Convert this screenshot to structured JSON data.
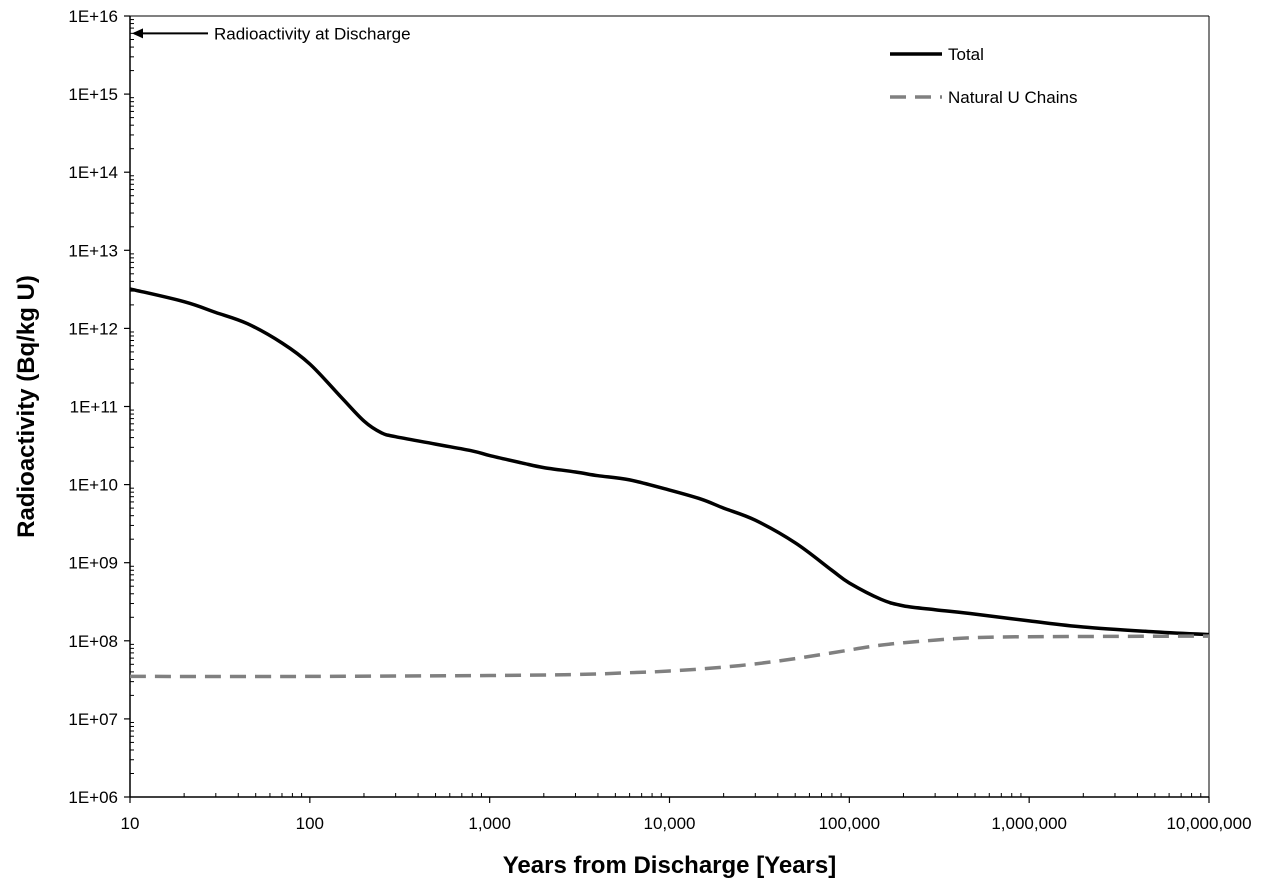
{
  "chart_data": {
    "type": "line",
    "title": "",
    "xlabel": "Years from Discharge [Years]",
    "ylabel": "Radioactivity (Bq/kg U)",
    "x_scale": "log",
    "y_scale": "log",
    "xlim": [
      10,
      10000000
    ],
    "ylim": [
      1000000.0,
      1e+16
    ],
    "grid": false,
    "legend_position": "top-right",
    "x_ticks": [
      {
        "value": 10,
        "label": "10"
      },
      {
        "value": 100,
        "label": "100"
      },
      {
        "value": 1000,
        "label": "1,000"
      },
      {
        "value": 10000,
        "label": "10,000"
      },
      {
        "value": 100000,
        "label": "100,000"
      },
      {
        "value": 1000000,
        "label": "1,000,000"
      },
      {
        "value": 10000000,
        "label": "10,000,000"
      }
    ],
    "y_ticks": [
      {
        "value": 1000000.0,
        "label": "1E+06"
      },
      {
        "value": 10000000.0,
        "label": "1E+07"
      },
      {
        "value": 100000000.0,
        "label": "1E+08"
      },
      {
        "value": 1000000000.0,
        "label": "1E+09"
      },
      {
        "value": 10000000000.0,
        "label": "1E+10"
      },
      {
        "value": 100000000000.0,
        "label": "1E+11"
      },
      {
        "value": 1000000000000.0,
        "label": "1E+12"
      },
      {
        "value": 10000000000000.0,
        "label": "1E+13"
      },
      {
        "value": 100000000000000.0,
        "label": "1E+14"
      },
      {
        "value": 1000000000000000.0,
        "label": "1E+15"
      },
      {
        "value": 1e+16,
        "label": "1E+16"
      }
    ],
    "series": [
      {
        "name": "Total",
        "color": "#000000",
        "style": "solid",
        "x": [
          10,
          20,
          30,
          45,
          70,
          100,
          150,
          200,
          250,
          300,
          500,
          800,
          1000,
          1500,
          2000,
          3000,
          4000,
          6000,
          10000,
          15000,
          20000,
          30000,
          50000,
          80000,
          100000,
          150000,
          200000,
          300000,
          500000,
          1000000,
          2000000,
          5000000,
          10000000
        ],
        "values": [
          3200000000000.0,
          2200000000000.0,
          1600000000000.0,
          1150000000000.0,
          650000000000.0,
          350000000000.0,
          130000000000.0,
          65000000000.0,
          46000000000.0,
          41000000000.0,
          33000000000.0,
          27000000000.0,
          23500000000.0,
          19000000000.0,
          16500000000.0,
          14500000000.0,
          13000000000.0,
          11500000000.0,
          8500000000.0,
          6500000000.0,
          5000000000.0,
          3500000000.0,
          1800000000.0,
          800000000.0,
          550000000.0,
          340000000.0,
          280000000.0,
          250000000.0,
          220000000.0,
          180000000.0,
          150000000.0,
          130000000.0,
          120000000.0
        ]
      },
      {
        "name": "Natural U Chains",
        "color": "#808080",
        "style": "dashed",
        "x": [
          10,
          100,
          1000,
          3000,
          6000,
          10000,
          20000,
          40000,
          80000,
          150000,
          300000,
          500000,
          1000000,
          3000000,
          10000000
        ],
        "values": [
          35000000.0,
          35000000.0,
          36000000.0,
          37000000.0,
          39000000.0,
          41000000.0,
          46000000.0,
          55000000.0,
          70000000.0,
          88000000.0,
          102000000.0,
          110000000.0,
          113000000.0,
          114000000.0,
          115000000.0
        ]
      }
    ],
    "annotations": [
      {
        "text": "Radioactivity at Discharge",
        "x": 10,
        "y": 6000000000000000.0
      }
    ]
  }
}
